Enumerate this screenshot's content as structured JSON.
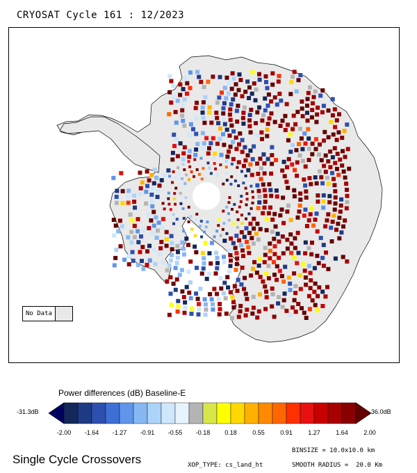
{
  "map": {
    "title": "CRYOSAT Cycle 161 : 12/2023",
    "no_data_label": "No Data",
    "no_data_color": "#e9e9e9"
  },
  "legend": {
    "title": "Power differences (dB) Baseline-E",
    "min_label": "-31.3dB",
    "max_label": "36.0dB",
    "colors": [
      "#000060",
      "#14275a",
      "#1f3a85",
      "#2e4fb0",
      "#3e6fd6",
      "#5f95eb",
      "#86b7f3",
      "#acd3f8",
      "#cfe7fb",
      "#e8f4fd",
      "#b4b4b4",
      "#d8e64a",
      "#ffff00",
      "#ffd800",
      "#ffb000",
      "#ff8a00",
      "#ff6600",
      "#ff3000",
      "#e81010",
      "#c80000",
      "#a80000",
      "#8a0000",
      "#650000"
    ],
    "tick_labels": [
      "-2.00",
      "-1.64",
      "-1.27",
      "-0.91",
      "-0.55",
      "-0.18",
      "0.18",
      "0.55",
      "0.91",
      "1.27",
      "1.64",
      "2.00"
    ]
  },
  "footer": {
    "title": "Single Cycle Crossovers",
    "binsize": "BINSIZE = 10.0x10.0 km",
    "xop_type": "XOP_TYPE: cs_land_ht",
    "smooth_radius": "SMOOTH RADIUS =  20.0 Km"
  }
}
